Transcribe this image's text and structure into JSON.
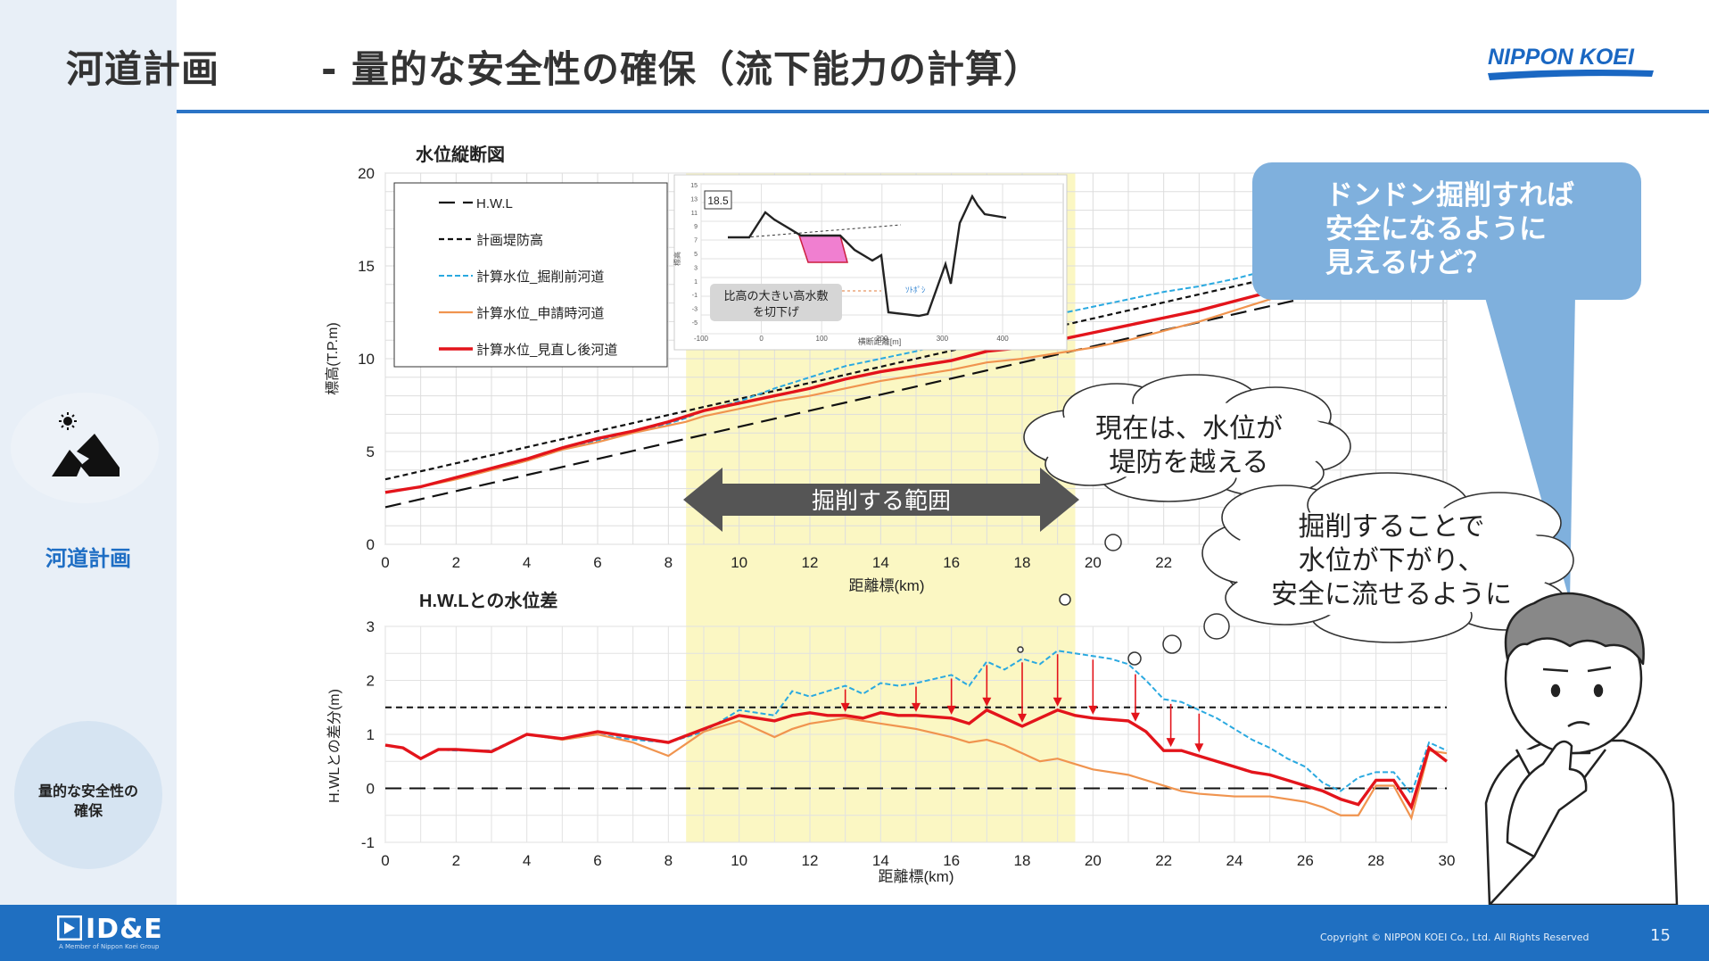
{
  "header": {
    "title_main": "河道計画",
    "title_sub": "- 量的な安全性の確保（流下能力の計算）",
    "logo_text": "NIPPON KOEI"
  },
  "sidebar": {
    "section_label": "河道計画",
    "active_item_line1": "量的な安全性の",
    "active_item_line2": "確保"
  },
  "footer": {
    "logo_text": "ID&E",
    "tagline": "A Member of Nippon Koei Group",
    "copyright": "Copyright © NIPPON KOEI Co., Ltd.  All Rights Reserved",
    "page_number": "15"
  },
  "callout": {
    "lines": [
      "ドンドン掘削すれば",
      "安全になるように",
      "見えるけど？"
    ]
  },
  "clouds": {
    "cloud1_lines": [
      "現在は、水位が",
      "堤防を越える"
    ],
    "cloud2_lines": [
      "掘削することで",
      "水位が下がり、",
      "安全に流せるように"
    ]
  },
  "excavation_label": "掘削する範囲",
  "inset": {
    "box_label": "18.5",
    "note_line1": "比高の大きい高水敷",
    "note_line2": "を切下げ",
    "water_label": "ｿﾄﾎﾟｼ"
  },
  "colors": {
    "accent_blue": "#1f6fc1",
    "highlight_yellow": "#fbf7c3",
    "series_red": "#e3141b",
    "series_orange": "#f0944f",
    "series_cyan": "#2aa9e0"
  },
  "chart_data": [
    {
      "type": "line",
      "title": "水位縦断図",
      "xlabel": "距離標(km)",
      "ylabel": "標高(T.P.m)",
      "xlim": [
        0,
        30
      ],
      "ylim": [
        0,
        20
      ],
      "xticks": [
        "0",
        "2",
        "4",
        "6",
        "8",
        "10",
        "12",
        "14",
        "16",
        "18",
        "20",
        "22"
      ],
      "yticks": [
        "0",
        "5",
        "10",
        "15",
        "20"
      ],
      "highlight_range_km": [
        8.5,
        19.5
      ],
      "legend_position": "top-left",
      "series": [
        {
          "name": "H.W.L",
          "style": "long-dash",
          "x": [
            0,
            30
          ],
          "y": [
            2.0,
            15.0
          ]
        },
        {
          "name": "計画堤防高",
          "style": "short-dash",
          "x": [
            0,
            30
          ],
          "y": [
            3.5,
            16.5
          ]
        },
        {
          "name": "計算水位_掘削前河道",
          "style": "dashed-cyan",
          "x": [
            0,
            1,
            2,
            3,
            4,
            5,
            6,
            7,
            8,
            8.5,
            9,
            10,
            11,
            12,
            13,
            14,
            15,
            16,
            17,
            18,
            19,
            20,
            21,
            22,
            23,
            24,
            25,
            25.5
          ],
          "y": [
            2.8,
            3.1,
            3.6,
            4.0,
            4.5,
            5.1,
            5.6,
            6.0,
            6.5,
            6.8,
            7.2,
            7.7,
            8.4,
            9.0,
            9.6,
            10.0,
            10.4,
            10.9,
            11.4,
            12.0,
            12.4,
            12.8,
            13.2,
            13.6,
            13.9,
            14.3,
            14.8,
            15.2
          ]
        },
        {
          "name": "計算水位_申請時河道",
          "style": "solid-orange",
          "x": [
            0,
            1,
            2,
            3,
            4,
            5,
            6,
            7,
            8,
            8.5,
            9,
            10,
            11,
            12,
            13,
            14,
            15,
            16,
            17,
            18,
            19,
            20,
            21,
            22,
            23,
            24,
            25,
            25.5
          ],
          "y": [
            2.8,
            3.1,
            3.5,
            4.0,
            4.5,
            5.1,
            5.5,
            6.0,
            6.4,
            6.6,
            6.9,
            7.3,
            7.7,
            8.0,
            8.4,
            8.8,
            9.1,
            9.4,
            9.8,
            10.0,
            10.3,
            10.6,
            11.0,
            11.5,
            12.0,
            12.6,
            13.2,
            13.6
          ]
        },
        {
          "name": "計算水位_見直し後河道",
          "style": "solid-red",
          "x": [
            0,
            1,
            2,
            3,
            4,
            5,
            6,
            7,
            8,
            8.5,
            9,
            10,
            11,
            12,
            13,
            14,
            15,
            16,
            17,
            18,
            19,
            20,
            21,
            22,
            23,
            24,
            25,
            25.5
          ],
          "y": [
            2.8,
            3.1,
            3.6,
            4.1,
            4.6,
            5.2,
            5.7,
            6.1,
            6.6,
            6.9,
            7.2,
            7.6,
            8.0,
            8.4,
            8.9,
            9.3,
            9.6,
            9.9,
            10.4,
            10.6,
            11.0,
            11.4,
            11.8,
            12.2,
            12.6,
            13.1,
            13.6,
            14.0
          ]
        }
      ]
    },
    {
      "type": "line",
      "title": "H.W.Lとの水位差",
      "xlabel": "距離標(km)",
      "ylabel": "H.WLとの差分(m)",
      "xlim": [
        0,
        30
      ],
      "ylim": [
        -1,
        3
      ],
      "xticks": [
        "0",
        "2",
        "4",
        "6",
        "8",
        "10",
        "12",
        "14",
        "16",
        "18",
        "20",
        "22",
        "24",
        "26",
        "28",
        "30"
      ],
      "yticks": [
        "-1",
        "0",
        "1",
        "2",
        "3"
      ],
      "reference_lines": [
        1.5,
        0
      ],
      "series": [
        {
          "name": "計算水位_掘削前河道",
          "style": "dashed-cyan",
          "x": [
            0,
            0.5,
            1,
            1.5,
            2,
            3,
            4,
            5,
            6,
            7,
            8,
            9,
            10,
            10.5,
            11,
            11.5,
            12,
            12.5,
            13,
            13.5,
            14,
            14.5,
            15,
            16,
            16.5,
            17,
            17.5,
            18,
            18.5,
            19,
            19.5,
            20,
            20.5,
            21,
            21.5,
            22,
            22.5,
            23,
            23.5,
            24,
            24.5,
            25,
            25.5,
            26,
            26.5,
            27,
            27.5,
            28,
            28.5,
            29,
            29.5,
            30
          ],
          "y": [
            0.8,
            0.75,
            0.55,
            0.72,
            0.7,
            0.7,
            1.0,
            0.9,
            1.0,
            0.9,
            0.85,
            1.05,
            1.45,
            1.4,
            1.35,
            1.8,
            1.7,
            1.8,
            1.9,
            1.75,
            1.95,
            1.9,
            1.95,
            2.1,
            1.9,
            2.35,
            2.2,
            2.4,
            2.3,
            2.55,
            2.5,
            2.45,
            2.4,
            2.3,
            2.0,
            1.65,
            1.6,
            1.45,
            1.3,
            1.1,
            0.9,
            0.75,
            0.55,
            0.4,
            0.1,
            -0.05,
            0.2,
            0.3,
            0.3,
            -0.1,
            0.85,
            0.7
          ]
        },
        {
          "name": "計算水位_申請時河道",
          "style": "solid-orange",
          "x": [
            0,
            0.5,
            1,
            1.5,
            2,
            3,
            4,
            5,
            6,
            7,
            8,
            9,
            10,
            10.5,
            11,
            11.5,
            12,
            13,
            14,
            15,
            16,
            16.5,
            17,
            17.5,
            18,
            18.5,
            19,
            19.5,
            20,
            21,
            22,
            22.5,
            23,
            24,
            25,
            26,
            26.5,
            27,
            27.5,
            28,
            28.5,
            29,
            29.5,
            30
          ],
          "y": [
            0.8,
            0.75,
            0.55,
            0.72,
            0.72,
            0.68,
            1.0,
            0.9,
            1.0,
            0.85,
            0.6,
            1.05,
            1.25,
            1.1,
            0.95,
            1.1,
            1.2,
            1.3,
            1.2,
            1.1,
            0.95,
            0.85,
            0.9,
            0.8,
            0.65,
            0.5,
            0.55,
            0.45,
            0.35,
            0.25,
            0.05,
            -0.05,
            -0.1,
            -0.15,
            -0.15,
            -0.25,
            -0.35,
            -0.5,
            -0.5,
            0.05,
            0.05,
            -0.55,
            0.7,
            0.65
          ]
        },
        {
          "name": "計算水位_見直し後河道",
          "style": "solid-red",
          "x": [
            0,
            0.5,
            1,
            1.5,
            2,
            3,
            4,
            5,
            6,
            7,
            8,
            9,
            10,
            10.5,
            11,
            11.5,
            12,
            12.5,
            13,
            13.5,
            14,
            14.5,
            15,
            16,
            16.5,
            17,
            17.5,
            18,
            18.5,
            19,
            19.5,
            20,
            21,
            21.5,
            22,
            22.5,
            23,
            23.5,
            24,
            24.5,
            25,
            26,
            26.5,
            27,
            27.5,
            28,
            28.5,
            29,
            29.5,
            30
          ],
          "y": [
            0.8,
            0.75,
            0.55,
            0.72,
            0.72,
            0.68,
            1.0,
            0.92,
            1.05,
            0.95,
            0.85,
            1.1,
            1.35,
            1.3,
            1.25,
            1.35,
            1.4,
            1.35,
            1.35,
            1.3,
            1.4,
            1.35,
            1.35,
            1.3,
            1.2,
            1.45,
            1.3,
            1.15,
            1.3,
            1.45,
            1.35,
            1.3,
            1.25,
            1.05,
            0.7,
            0.7,
            0.6,
            0.5,
            0.4,
            0.3,
            0.25,
            0.05,
            -0.05,
            -0.2,
            -0.3,
            0.15,
            0.15,
            -0.35,
            0.75,
            0.5
          ]
        }
      ],
      "reduction_arrows_km": [
        13,
        15,
        16,
        17,
        18,
        19,
        20,
        21.2,
        22.2,
        23
      ]
    }
  ],
  "inset_chart": {
    "type": "line",
    "xlabel": "横断距離[m]",
    "ylabel": "標高",
    "xticks": [
      "-100",
      "0",
      "100",
      "200",
      "300",
      "400"
    ],
    "yticks": [
      "15",
      "13",
      "11",
      "9",
      "7",
      "5",
      "3",
      "1",
      "-1",
      "-3",
      "-5"
    ]
  }
}
